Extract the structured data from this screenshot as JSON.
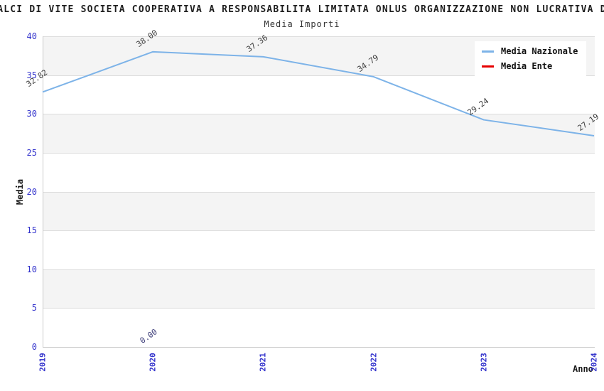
{
  "header": {
    "title": "ALCI DI VITE SOCIETA COOPERATIVA A RESPONSABILITA LIMITATA ONLUS ORGANIZZAZIONE NON LUCRATIVA D",
    "subtitle": "Media Importi"
  },
  "colors": {
    "band": "#f4f4f4",
    "grid": "#dddddd",
    "axis_spine": "#c9c9c9",
    "tick_label": "#3333cc",
    "national_line": "#7db3e8",
    "ente_line": "#e60000"
  },
  "chart_data": {
    "type": "line",
    "title": "Media Importi",
    "xlabel": "Anno",
    "ylabel": "Media",
    "x": [
      "2019",
      "2020",
      "2021",
      "2022",
      "2023",
      "2024"
    ],
    "series": [
      {
        "name": "Media Nazionale",
        "color": "#7db3e8",
        "label_color": "#3a3a3a",
        "values": [
          32.82,
          38.0,
          37.36,
          34.79,
          29.24,
          27.19
        ]
      },
      {
        "name": "Media Ente",
        "color": "#e60000",
        "label_color": "#3c3c78",
        "values": [
          null,
          0.0,
          null,
          null,
          null,
          null
        ]
      }
    ],
    "ylim": [
      0,
      40
    ],
    "yticks": [
      0,
      5,
      10,
      15,
      20,
      25,
      30,
      35,
      40
    ],
    "legend_position": "top-right",
    "grid": "horizontal-bands",
    "value_label_format": "2-decimals"
  }
}
